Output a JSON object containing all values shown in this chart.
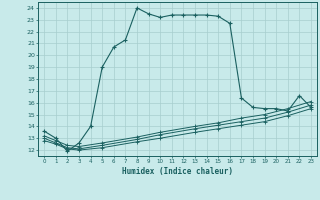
{
  "xlabel": "Humidex (Indice chaleur)",
  "bg_color": "#c8eaea",
  "grid_color": "#a8cece",
  "line_color": "#1a6060",
  "xlim": [
    -0.5,
    23.5
  ],
  "ylim": [
    11.5,
    24.5
  ],
  "yticks": [
    12,
    13,
    14,
    15,
    16,
    17,
    18,
    19,
    20,
    21,
    22,
    23,
    24
  ],
  "xticks": [
    0,
    1,
    2,
    3,
    4,
    5,
    6,
    7,
    8,
    9,
    10,
    11,
    12,
    13,
    14,
    15,
    16,
    17,
    18,
    19,
    20,
    21,
    22,
    23
  ],
  "main_x": [
    0,
    1,
    2,
    3,
    4,
    5,
    6,
    7,
    8,
    9,
    10,
    11,
    12,
    13,
    14,
    15,
    16,
    17,
    18,
    19,
    20,
    21,
    22,
    23
  ],
  "main_y": [
    13.6,
    13.0,
    11.9,
    12.6,
    14.0,
    19.0,
    20.7,
    21.3,
    24.0,
    23.5,
    23.2,
    23.4,
    23.4,
    23.4,
    23.4,
    23.3,
    22.7,
    16.4,
    15.6,
    15.5,
    15.5,
    15.3,
    16.6,
    15.6
  ],
  "line2_x": [
    0,
    1,
    2,
    3,
    5,
    8,
    10,
    13,
    15,
    17,
    19,
    21,
    23
  ],
  "line2_y": [
    12.8,
    12.5,
    12.1,
    12.0,
    12.2,
    12.7,
    13.0,
    13.5,
    13.8,
    14.1,
    14.4,
    14.9,
    15.5
  ],
  "line3_x": [
    0,
    1,
    2,
    3,
    5,
    8,
    10,
    13,
    15,
    17,
    19,
    21,
    23
  ],
  "line3_y": [
    13.0,
    12.6,
    12.2,
    12.1,
    12.4,
    12.9,
    13.3,
    13.8,
    14.1,
    14.4,
    14.7,
    15.2,
    15.8
  ],
  "line4_x": [
    0,
    1,
    2,
    3,
    5,
    8,
    10,
    13,
    15,
    17,
    19,
    21,
    23
  ],
  "line4_y": [
    13.2,
    12.8,
    12.4,
    12.3,
    12.6,
    13.1,
    13.5,
    14.0,
    14.3,
    14.7,
    15.0,
    15.5,
    16.1
  ]
}
